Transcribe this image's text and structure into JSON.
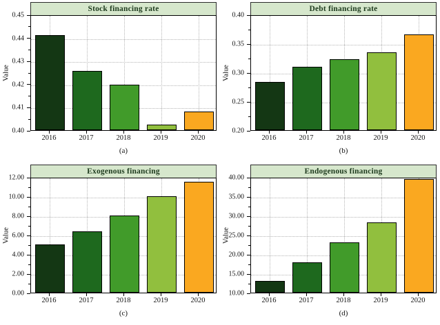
{
  "figure": {
    "name": "financing-bar-charts",
    "layout": "2x2-grid"
  },
  "colors": {
    "bar_palette": [
      "#143714",
      "#1e691e",
      "#419b2a",
      "#91bf3e",
      "#faa820"
    ],
    "title_band_bg": "#d6e7cc",
    "title_text": "#1e3b1e",
    "gridline": "#b5b5b5",
    "axis": "#000000"
  },
  "chart_data": [
    {
      "type": "bar",
      "title": "Stock financing rate",
      "panel_label": "(a)",
      "ylabel": "Value",
      "categories": [
        "2016",
        "2017",
        "2018",
        "2019",
        "2020"
      ],
      "values": [
        0.441,
        0.4255,
        0.4195,
        0.4025,
        0.408
      ],
      "ylim": [
        0.4,
        0.45
      ],
      "ytick_step": 0.01,
      "ytick_decimals": 2,
      "grid": true,
      "legend": "none"
    },
    {
      "type": "bar",
      "title": "Debt financing rate",
      "panel_label": "(b)",
      "ylabel": "Value",
      "categories": [
        "2016",
        "2017",
        "2018",
        "2019",
        "2020"
      ],
      "values": [
        0.283,
        0.31,
        0.323,
        0.335,
        0.366
      ],
      "ylim": [
        0.2,
        0.4
      ],
      "ytick_step": 0.05,
      "ytick_decimals": 2,
      "grid": true,
      "legend": "none"
    },
    {
      "type": "bar",
      "title": "Exogenous financing",
      "panel_label": "(c)",
      "ylabel": "Value",
      "categories": [
        "2016",
        "2017",
        "2018",
        "2019",
        "2020"
      ],
      "values": [
        5.0,
        6.35,
        8.0,
        10.0,
        11.5
      ],
      "ylim": [
        0,
        12
      ],
      "ytick_step": 2,
      "ytick_decimals": 2,
      "grid": true,
      "legend": "none"
    },
    {
      "type": "bar",
      "title": "Endogenous financing",
      "panel_label": "(d)",
      "ylabel": "Value",
      "categories": [
        "2016",
        "2017",
        "2018",
        "2019",
        "2020"
      ],
      "values": [
        13.1,
        17.8,
        23.1,
        28.3,
        39.4
      ],
      "ylim": [
        10,
        40
      ],
      "ytick_step": 5,
      "ytick_decimals": 2,
      "grid": true,
      "legend": "none"
    }
  ]
}
